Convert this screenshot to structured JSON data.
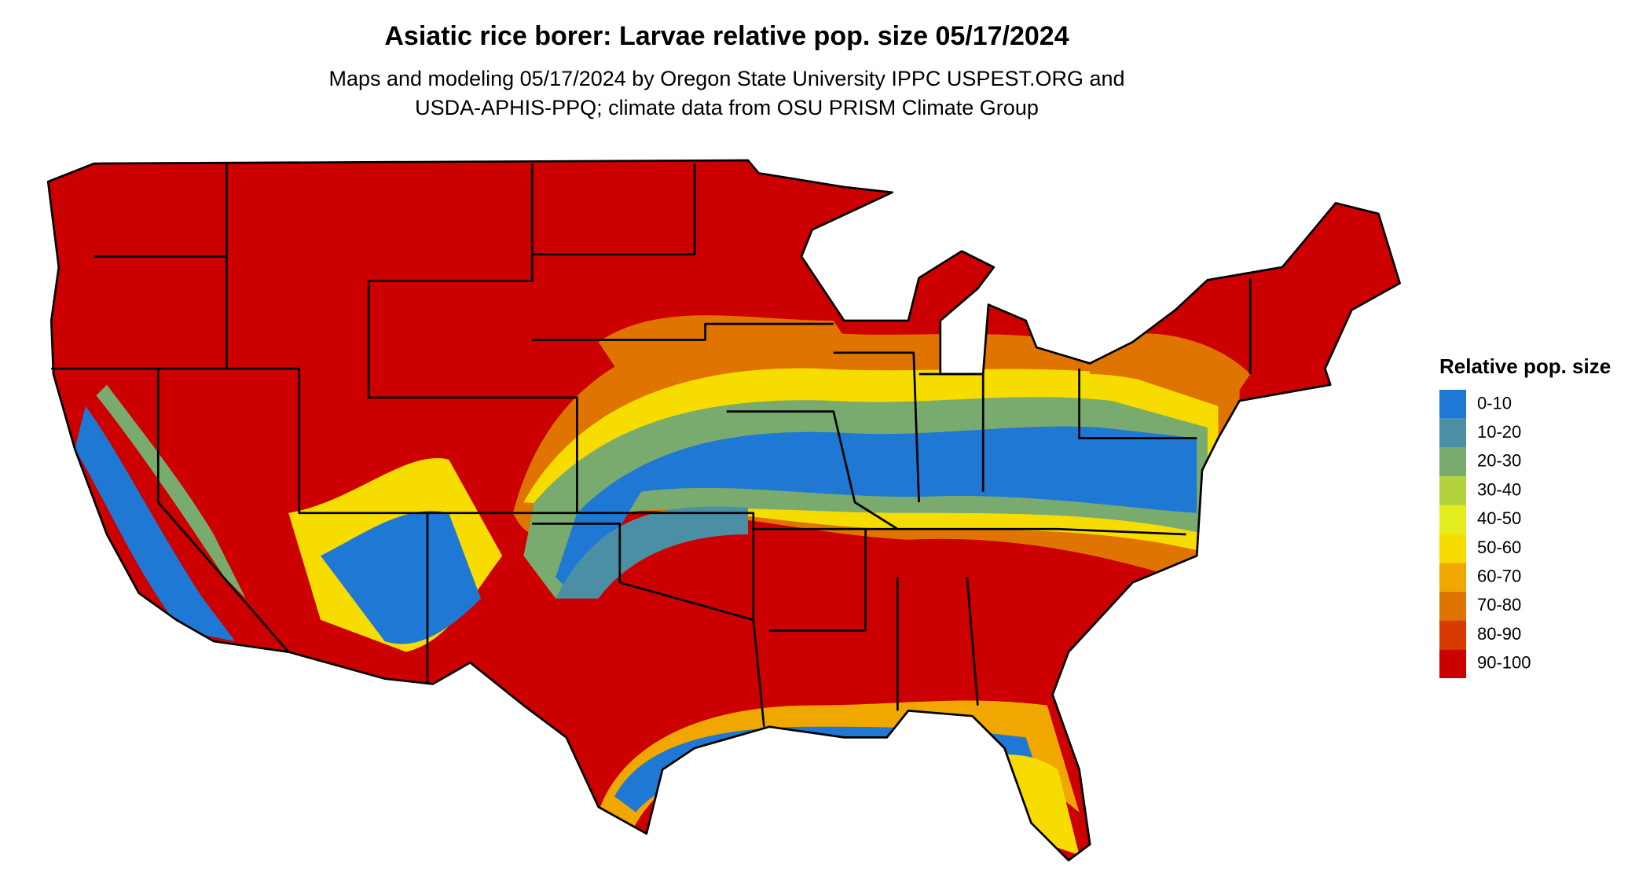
{
  "header": {
    "title": "Asiatic rice borer: Larvae relative pop. size 05/17/2024",
    "subtitle_lines": [
      "Maps and modeling 05/17/2024 by Oregon State University IPPC USPEST.ORG and",
      "USDA-APHIS-PPQ; climate data from OSU PRISM Climate Group"
    ]
  },
  "legend": {
    "title": "Relative pop. size",
    "items": [
      {
        "label": "0-10",
        "color": "#1f78d4"
      },
      {
        "label": "10-20",
        "color": "#4a8fa3"
      },
      {
        "label": "20-30",
        "color": "#7aab6e"
      },
      {
        "label": "30-40",
        "color": "#b3d13a"
      },
      {
        "label": "40-50",
        "color": "#e3ec1c"
      },
      {
        "label": "50-60",
        "color": "#f7dc00"
      },
      {
        "label": "60-70",
        "color": "#f0a800"
      },
      {
        "label": "70-80",
        "color": "#e07400"
      },
      {
        "label": "80-90",
        "color": "#d83a00"
      },
      {
        "label": "90-100",
        "color": "#cc0000"
      }
    ]
  }
}
